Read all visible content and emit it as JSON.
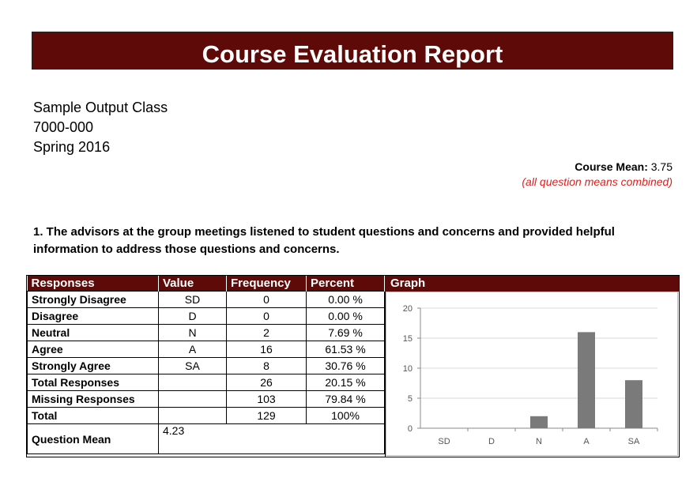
{
  "report": {
    "title": "Course Evaluation Report",
    "class_name": "Sample Output Class",
    "class_code": "7000-000",
    "term": "Spring 2016",
    "course_mean_label": "Course Mean:",
    "course_mean_value": "3.75",
    "course_mean_note": "(all question means combined)"
  },
  "question": {
    "text": "1. The advisors at the group meetings listened to student questions and concerns and provided helpful information to address those questions and concerns."
  },
  "table": {
    "headers": [
      "Responses",
      "Value",
      "Frequency",
      "Percent"
    ],
    "graph_header": "Graph",
    "rows": [
      {
        "label": "Strongly Disagree",
        "value": "SD",
        "frequency": "0",
        "percent": "0.00 %"
      },
      {
        "label": "Disagree",
        "value": "D",
        "frequency": "0",
        "percent": "0.00 %"
      },
      {
        "label": "Neutral",
        "value": "N",
        "frequency": "2",
        "percent": "7.69 %"
      },
      {
        "label": "Agree",
        "value": "A",
        "frequency": "16",
        "percent": "61.53 %"
      },
      {
        "label": "Strongly Agree",
        "value": "SA",
        "frequency": "8",
        "percent": "30.76 %"
      },
      {
        "label": "Total Responses",
        "value": "",
        "frequency": "26",
        "percent": "20.15 %"
      },
      {
        "label": "Missing Responses",
        "value": "",
        "frequency": "103",
        "percent": "79.84 %"
      },
      {
        "label": "Total",
        "value": "",
        "frequency": "129",
        "percent": "100%"
      }
    ],
    "mean_label": "Question Mean",
    "mean_value": "4.23"
  },
  "chart_data": {
    "type": "bar",
    "categories": [
      "SD",
      "D",
      "N",
      "A",
      "SA"
    ],
    "values": [
      0,
      0,
      2,
      16,
      8
    ],
    "ylim": [
      0,
      20
    ],
    "yticks": [
      0,
      5,
      10,
      15,
      20
    ],
    "grid": true,
    "bar_color": "#7a7a7a"
  }
}
